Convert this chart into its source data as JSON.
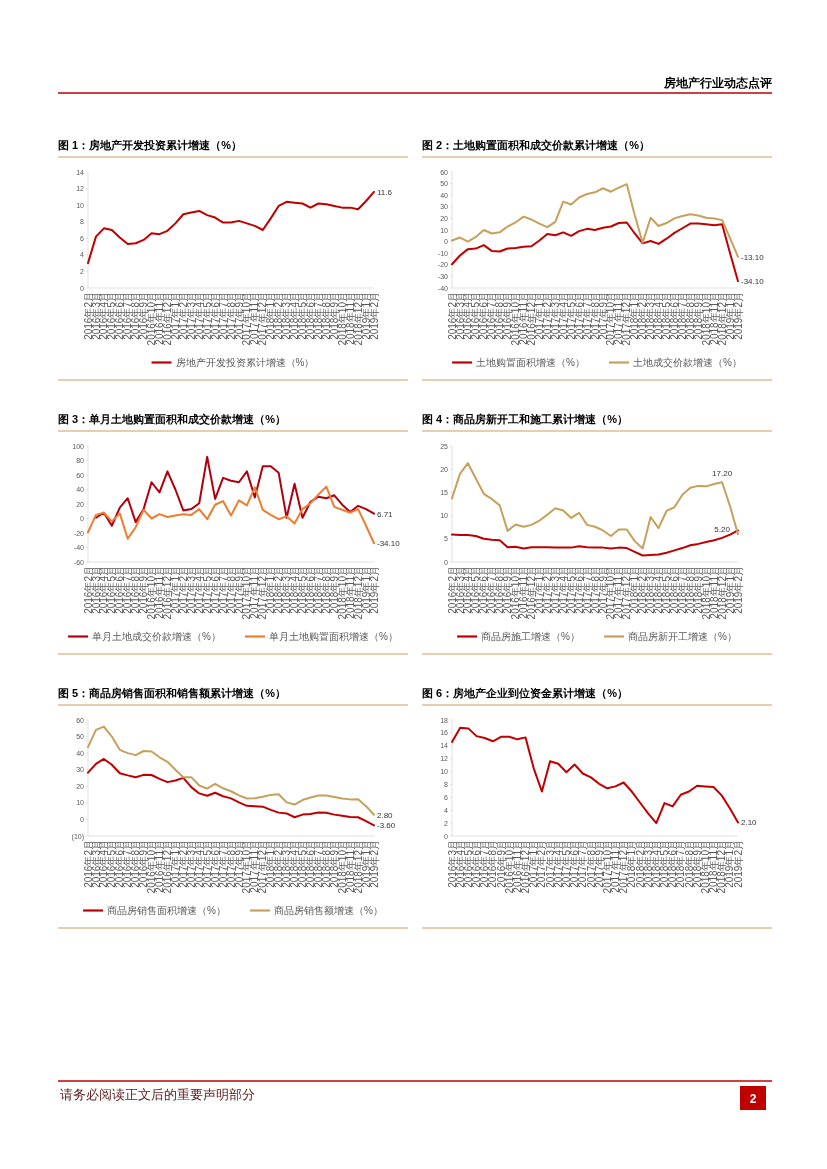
{
  "chart_data": [
    {
      "type": "line",
      "title": "图 1：房地产开发投资累计增速（%）",
      "categories": [
        "2016年2月",
        "2016年3月",
        "2016年4月",
        "2016年5月",
        "2016年6月",
        "2016年7月",
        "2016年8月",
        "2016年9月",
        "2016年10月",
        "2016年11月",
        "2016年12月",
        "2017年1月",
        "2017年2月",
        "2017年3月",
        "2017年4月",
        "2017年5月",
        "2017年6月",
        "2017年7月",
        "2017年8月",
        "2017年9月",
        "2017年10月",
        "2017年11月",
        "2017年12月",
        "2018年1月",
        "2018年2月",
        "2018年3月",
        "2018年4月",
        "2018年5月",
        "2018年6月",
        "2018年7月",
        "2018年8月",
        "2018年9月",
        "2018年10月",
        "2018年11月",
        "2018年12月",
        "2019年1月",
        "2019年2月"
      ],
      "series": [
        {
          "name": "房地产开发投资累计增速（%）",
          "color": "#c00000",
          "values": [
            3.0,
            6.2,
            7.2,
            7.0,
            6.1,
            5.3,
            5.4,
            5.8,
            6.6,
            6.5,
            6.9,
            7.8,
            8.9,
            9.1,
            9.3,
            8.8,
            8.5,
            7.9,
            7.9,
            8.1,
            7.8,
            7.5,
            7.0,
            8.4,
            9.9,
            10.4,
            10.3,
            10.2,
            9.7,
            10.2,
            10.1,
            9.9,
            9.7,
            9.7,
            9.5,
            10.5,
            11.6
          ]
        }
      ],
      "ylim": [
        0,
        14
      ],
      "yticks": [
        0,
        2,
        4,
        6,
        8,
        10,
        12,
        14
      ],
      "legend": "bottom",
      "annotations": [
        {
          "text": "11.6",
          "x": "2019年2月",
          "y": 11.6
        }
      ]
    },
    {
      "type": "line",
      "title": "图 2：土地购置面积和成交价款累计增速（%）",
      "categories": [
        "2016年2月",
        "2016年3月",
        "2016年4月",
        "2016年5月",
        "2016年6月",
        "2016年7月",
        "2016年8月",
        "2016年9月",
        "2016年10月",
        "2016年11月",
        "2016年12月",
        "2017年1月",
        "2017年2月",
        "2017年3月",
        "2017年4月",
        "2017年5月",
        "2017年6月",
        "2017年7月",
        "2017年8月",
        "2017年9月",
        "2017年10月",
        "2017年11月",
        "2017年12月",
        "2018年1月",
        "2018年2月",
        "2018年3月",
        "2018年4月",
        "2018年5月",
        "2018年6月",
        "2018年7月",
        "2018年8月",
        "2018年9月",
        "2018年10月",
        "2018年11月",
        "2018年12月",
        "2019年1月",
        "2019年2月"
      ],
      "series": [
        {
          "name": "土地购置面积增速（%）",
          "color": "#c00000",
          "values": [
            -19.5,
            -12,
            -6.5,
            -6,
            -3,
            -8,
            -8.5,
            -6,
            -5.5,
            -4.5,
            -4,
            1,
            6.5,
            5.5,
            8,
            5,
            9,
            11,
            10,
            12,
            13,
            16,
            16.5,
            7,
            -1.5,
            0.5,
            -2,
            2.5,
            7.5,
            11.5,
            15.5,
            15.5,
            15,
            14,
            15,
            -10,
            -34.1
          ]
        },
        {
          "name": "土地成交价款增速（%）",
          "color": "#c6a15b",
          "values": [
            1,
            3.5,
            0,
            4,
            10,
            7,
            8,
            13,
            16.5,
            21.5,
            19,
            15.5,
            12.5,
            17,
            34.5,
            32,
            38,
            41,
            42.5,
            46,
            43,
            46.5,
            49.5,
            23,
            -1,
            20.5,
            13.5,
            16,
            20,
            22,
            23.5,
            22.5,
            20.5,
            20,
            18.5,
            3,
            -13.1
          ]
        }
      ],
      "ylim": [
        -40,
        60
      ],
      "yticks": [
        -40,
        -30,
        -20,
        -10,
        0,
        10,
        20,
        30,
        40,
        50,
        60
      ],
      "legend": "bottom",
      "annotations": [
        {
          "text": "-13.10",
          "x": "2019年2月",
          "y": -13.1
        },
        {
          "text": "-34.10",
          "x": "2019年2月",
          "y": -34.1
        }
      ]
    },
    {
      "type": "line",
      "title": "图 3：单月土地购置面积和成交价款增速（%）",
      "categories": [
        "2016年2月",
        "2016年3月",
        "2016年4月",
        "2016年5月",
        "2016年6月",
        "2016年7月",
        "2016年8月",
        "2016年9月",
        "2016年10月",
        "2016年11月",
        "2016年12月",
        "2017年1月",
        "2017年2月",
        "2017年3月",
        "2017年4月",
        "2017年5月",
        "2017年6月",
        "2017年7月",
        "2017年8月",
        "2017年9月",
        "2017年10月",
        "2017年11月",
        "2017年12月",
        "2018年1月",
        "2018年2月",
        "2018年3月",
        "2018年4月",
        "2018年5月",
        "2018年6月",
        "2018年7月",
        "2018年8月",
        "2018年9月",
        "2018年10月",
        "2018年11月",
        "2018年12月",
        "2019年1月",
        "2019年2月"
      ],
      "series": [
        {
          "name": "单月土地成交价款增速（%）",
          "color": "#b0000f",
          "values": [
            null,
            1,
            8,
            -10,
            15,
            28,
            -5,
            13,
            50,
            36,
            65,
            40,
            11,
            13,
            21,
            85,
            27,
            56,
            52,
            50,
            65,
            29,
            72,
            72,
            63,
            1,
            48,
            1,
            23,
            30,
            28,
            32,
            19,
            9,
            17.5,
            13,
            6.71
          ]
        },
        {
          "name": "单月土地购置面积增速（%）",
          "color": "#ed7d31",
          "values": [
            -19,
            5,
            8,
            -4,
            7,
            -28,
            -12,
            12,
            0,
            6,
            2,
            4,
            6,
            5,
            13,
            -1,
            19,
            24,
            4,
            25,
            18,
            43,
            12,
            5,
            -1,
            3,
            -7,
            13,
            21,
            33,
            44,
            16,
            12,
            8,
            13,
            -10,
            -34.1
          ]
        }
      ],
      "ylim": [
        -60,
        100
      ],
      "yticks": [
        -60,
        -40,
        -20,
        0,
        20,
        40,
        60,
        80,
        100
      ],
      "legend": "bottom",
      "annotations": [
        {
          "text": "6.71",
          "x": "2019年2月",
          "y": 6.71
        },
        {
          "text": "-34.10",
          "x": "2019年2月",
          "y": -34.1
        }
      ]
    },
    {
      "type": "line",
      "title": "图 4：商品房新开工和施工累计增速（%）",
      "categories": [
        "2016年2月",
        "2016年3月",
        "2016年4月",
        "2016年5月",
        "2016年6月",
        "2016年7月",
        "2016年8月",
        "2016年9月",
        "2016年10月",
        "2016年11月",
        "2016年12月",
        "2017年1月",
        "2017年2月",
        "2017年3月",
        "2017年4月",
        "2017年5月",
        "2017年6月",
        "2017年7月",
        "2017年8月",
        "2017年9月",
        "2017年10月",
        "2017年11月",
        "2017年12月",
        "2018年1月",
        "2018年2月",
        "2018年3月",
        "2018年4月",
        "2018年5月",
        "2018年6月",
        "2018年7月",
        "2018年8月",
        "2018年9月",
        "2018年10月",
        "2018年11月",
        "2018年12月",
        "2019年1月",
        "2019年2月"
      ],
      "series": [
        {
          "name": "商品房施工增速（%）",
          "color": "#c00000",
          "values": [
            5.9,
            5.8,
            5.8,
            5.6,
            5.0,
            4.8,
            4.7,
            3.2,
            3.3,
            2.9,
            3.2,
            3.2,
            3.2,
            3.1,
            3.1,
            3.1,
            3.4,
            3.2,
            3.1,
            3.1,
            2.9,
            3.1,
            3.0,
            2.2,
            1.4,
            1.5,
            1.6,
            2.0,
            2.5,
            3.0,
            3.6,
            3.9,
            4.3,
            4.7,
            5.2,
            5.9,
            6.8
          ]
        },
        {
          "name": "商品房新开工增速（%）",
          "color": "#c6a15b",
          "values": [
            13.7,
            19,
            21.3,
            18,
            14.7,
            13.6,
            12.2,
            6.7,
            8.1,
            7.6,
            8.0,
            8.9,
            10.2,
            11.6,
            11.1,
            9.5,
            10.6,
            8.0,
            7.6,
            6.8,
            5.6,
            7.0,
            7.0,
            4.5,
            2.9,
            9.7,
            7.3,
            11.0,
            11.8,
            14.5,
            16.0,
            16.4,
            16.3,
            16.8,
            17.2,
            12,
            6.0
          ]
        }
      ],
      "ylim": [
        0,
        25
      ],
      "yticks": [
        0,
        5,
        10,
        15,
        20,
        25
      ],
      "legend": "bottom",
      "annotations": [
        {
          "text": "5.20",
          "x": "2018年12月",
          "y": 5.2
        },
        {
          "text": "17.20",
          "x": "2018年12月",
          "y": 17.2
        }
      ]
    },
    {
      "type": "line",
      "title": "图 5：商品房销售面积和销售额累计增速（%）",
      "categories": [
        "2016年2月",
        "2016年3月",
        "2016年4月",
        "2016年5月",
        "2016年6月",
        "2016年7月",
        "2016年8月",
        "2016年9月",
        "2016年10月",
        "2016年11月",
        "2016年12月",
        "2017年1月",
        "2017年2月",
        "2017年3月",
        "2017年4月",
        "2017年5月",
        "2017年6月",
        "2017年7月",
        "2017年8月",
        "2017年9月",
        "2017年10月",
        "2017年11月",
        "2017年12月",
        "2018年1月",
        "2018年2月",
        "2018年3月",
        "2018年4月",
        "2018年5月",
        "2018年6月",
        "2018年7月",
        "2018年8月",
        "2018年9月",
        "2018年10月",
        "2018年11月",
        "2018年12月",
        "2019年1月",
        "2019年2月"
      ],
      "series": [
        {
          "name": "商品房销售面积增速（%）",
          "color": "#c00000",
          "values": [
            28.2,
            33.5,
            36.5,
            33,
            27.9,
            26.6,
            25.5,
            26.9,
            26.8,
            24.5,
            22.5,
            23.5,
            25.1,
            19.5,
            15.7,
            14.3,
            16.1,
            14,
            12.7,
            10.3,
            8.2,
            7.9,
            7.7,
            5.8,
            4.1,
            3.6,
            1.3,
            2.9,
            3.3,
            4.2,
            4.0,
            2.9,
            2.2,
            1.4,
            1.3,
            -1,
            -3.6
          ]
        },
        {
          "name": "商品房销售额增速（%）",
          "color": "#c6a15b",
          "values": [
            43.6,
            54,
            56,
            50,
            42,
            40,
            38.8,
            41.3,
            41,
            37.5,
            34.8,
            30,
            25.5,
            25.5,
            20.5,
            18.6,
            21.5,
            18.8,
            17,
            14.5,
            12.6,
            12.8,
            13.7,
            14.8,
            15.2,
            10.3,
            9.0,
            11.7,
            13.2,
            14.4,
            14.5,
            13.5,
            12.6,
            12.1,
            12.2,
            8,
            2.8
          ]
        }
      ],
      "ylim": [
        -10,
        60
      ],
      "yticks": [
        {
          "value": -10,
          "label": "(10)"
        },
        0,
        10,
        20,
        30,
        40,
        50,
        60
      ],
      "legend": "bottom",
      "annotations": [
        {
          "text": "2.80",
          "x": "2019年2月",
          "y": 2.8
        },
        {
          "text": "-3.60",
          "x": "2019年2月",
          "y": -3.6
        }
      ]
    },
    {
      "type": "line",
      "title": "图 6：房地产企业到位资金累计增速（%）",
      "categories": [
        "2016年3月",
        "2016年4月",
        "2016年5月",
        "2016年6月",
        "2016年7月",
        "2016年8月",
        "2016年9月",
        "2016年10月",
        "2016年11月",
        "2016年12月",
        "2017年1月",
        "2017年2月",
        "2017年3月",
        "2017年4月",
        "2017年5月",
        "2017年6月",
        "2017年7月",
        "2017年8月",
        "2017年9月",
        "2017年10月",
        "2017年11月",
        "2017年12月",
        "2018年1月",
        "2018年2月",
        "2018年3月",
        "2018年4月",
        "2018年5月",
        "2018年6月",
        "2018年7月",
        "2018年8月",
        "2018年9月",
        "2018年10月",
        "2018年11月",
        "2018年12月",
        "2019年1月",
        "2019年2月"
      ],
      "series": [
        {
          "color": "#c00000",
          "values": [
            14.6,
            16.8,
            16.7,
            15.5,
            15.2,
            14.7,
            15.4,
            15.4,
            15.0,
            15.3,
            10.5,
            6.9,
            11.6,
            11.2,
            9.9,
            11.1,
            9.7,
            9.1,
            8.1,
            7.4,
            7.7,
            8.3,
            6.9,
            5.2,
            3.5,
            2.0,
            5.1,
            4.6,
            6.4,
            6.9,
            7.8,
            7.7,
            7.6,
            6.3,
            4.3,
            2.1
          ]
        }
      ],
      "ylim": [
        0,
        18
      ],
      "yticks": [
        0,
        2,
        4,
        6,
        8,
        10,
        12,
        14,
        16,
        18
      ],
      "annotations": [
        {
          "text": "2.10",
          "x": "2019年2月",
          "y": 2.1
        }
      ]
    },
    {
      "type": "other",
      "annotations": [
        "房地产行业动态点评",
        "请务必阅读正文后的重要声明部分",
        "2"
      ]
    }
  ]
}
